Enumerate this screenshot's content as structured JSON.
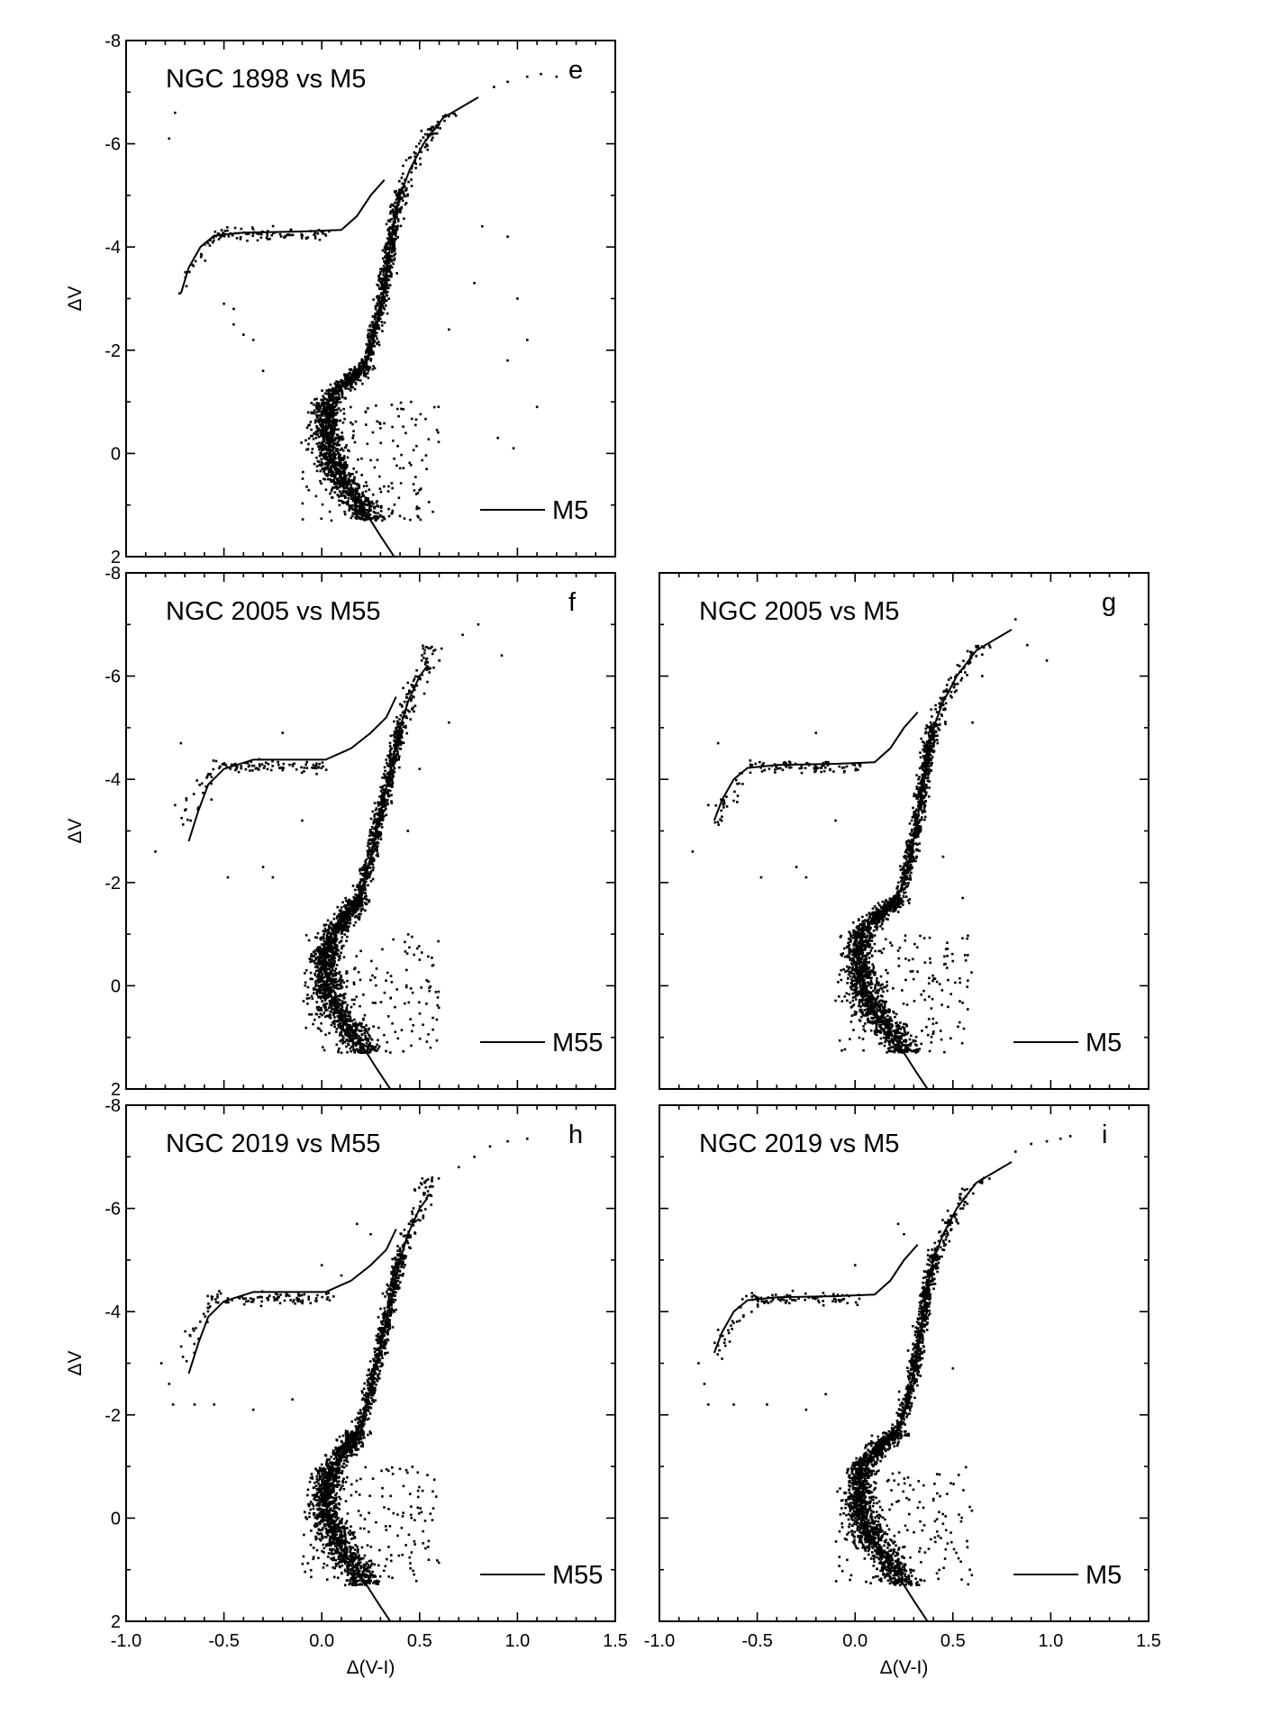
{
  "chart_data": [
    {
      "type": "scatter",
      "panel": "e",
      "title": "NGC 1898 vs M5",
      "legend": "M5",
      "xlabel": "",
      "ylabel": "ΔV",
      "xlim": [
        -1.0,
        1.5
      ],
      "ylim": [
        2,
        -8
      ],
      "xticks": [],
      "yticks": [
        "-8",
        "-6",
        "-4",
        "-2",
        "0",
        "2"
      ],
      "ridge_line": {
        "rgb_ms": [
          [
            0.37,
            2.0
          ],
          [
            0.3,
            1.6
          ],
          [
            0.2,
            1.0
          ],
          [
            0.1,
            0.5
          ],
          [
            0.04,
            0.0
          ],
          [
            0.02,
            -0.5
          ],
          [
            0.03,
            -1.0
          ],
          [
            0.1,
            -1.3
          ],
          [
            0.2,
            -1.6
          ],
          [
            0.25,
            -2.0
          ],
          [
            0.28,
            -2.5
          ],
          [
            0.31,
            -3.0
          ],
          [
            0.33,
            -3.5
          ],
          [
            0.35,
            -4.0
          ],
          [
            0.37,
            -4.5
          ],
          [
            0.4,
            -5.0
          ],
          [
            0.45,
            -5.5
          ],
          [
            0.52,
            -6.0
          ],
          [
            0.62,
            -6.5
          ],
          [
            0.8,
            -6.9
          ]
        ],
        "hb": [
          [
            -0.72,
            -3.1
          ],
          [
            -0.68,
            -3.6
          ],
          [
            -0.62,
            -4.0
          ],
          [
            -0.55,
            -4.22
          ],
          [
            -0.4,
            -4.28
          ],
          [
            -0.1,
            -4.3
          ],
          [
            0.1,
            -4.33
          ],
          [
            0.18,
            -4.6
          ],
          [
            0.25,
            -5.0
          ],
          [
            0.32,
            -5.3
          ]
        ]
      },
      "sparse_points": [
        [
          -0.78,
          -6.1
        ],
        [
          -0.75,
          -6.6
        ],
        [
          0.88,
          -7.1
        ],
        [
          0.95,
          -7.2
        ],
        [
          1.05,
          -7.3
        ],
        [
          1.12,
          -7.35
        ],
        [
          1.2,
          -7.3
        ],
        [
          0.95,
          -1.8
        ],
        [
          1.05,
          -2.2
        ],
        [
          1.1,
          -0.9
        ],
        [
          0.9,
          -0.3
        ],
        [
          0.98,
          -0.1
        ],
        [
          0.82,
          -4.4
        ],
        [
          0.95,
          -4.2
        ],
        [
          1.0,
          -3.0
        ],
        [
          0.78,
          -3.3
        ],
        [
          0.65,
          -2.4
        ],
        [
          -0.45,
          -2.8
        ],
        [
          -0.4,
          -2.3
        ],
        [
          -0.35,
          -2.2
        ],
        [
          -0.5,
          -2.9
        ],
        [
          -0.45,
          -2.5
        ],
        [
          -0.3,
          -1.6
        ]
      ]
    },
    {
      "type": "scatter",
      "panel": "f",
      "title": "NGC 2005 vs M55",
      "legend": "M55",
      "xlabel": "",
      "ylabel": "ΔV",
      "xlim": [
        -1.0,
        1.5
      ],
      "ylim": [
        2,
        -8
      ],
      "xticks": [],
      "yticks": [
        "-8",
        "-6",
        "-4",
        "-2",
        "0",
        "2"
      ],
      "ridge_line": {
        "rgb_ms": [
          [
            0.35,
            2.0
          ],
          [
            0.28,
            1.6
          ],
          [
            0.18,
            1.0
          ],
          [
            0.08,
            0.5
          ],
          [
            0.03,
            0.0
          ],
          [
            0.02,
            -0.5
          ],
          [
            0.05,
            -1.0
          ],
          [
            0.12,
            -1.3
          ],
          [
            0.2,
            -1.8
          ],
          [
            0.25,
            -2.5
          ],
          [
            0.28,
            -3.0
          ],
          [
            0.31,
            -3.5
          ],
          [
            0.34,
            -4.0
          ],
          [
            0.37,
            -4.5
          ],
          [
            0.4,
            -5.0
          ],
          [
            0.44,
            -5.5
          ],
          [
            0.5,
            -6.0
          ],
          [
            0.54,
            -6.2
          ]
        ],
        "hb": [
          [
            -0.68,
            -2.8
          ],
          [
            -0.63,
            -3.4
          ],
          [
            -0.58,
            -3.9
          ],
          [
            -0.5,
            -4.2
          ],
          [
            -0.35,
            -4.38
          ],
          [
            0.02,
            -4.38
          ],
          [
            0.15,
            -4.6
          ],
          [
            0.25,
            -4.9
          ],
          [
            0.33,
            -5.2
          ],
          [
            0.38,
            -5.6
          ]
        ]
      },
      "sparse_points": [
        [
          0.72,
          -6.8
        ],
        [
          0.8,
          -7.0
        ],
        [
          0.92,
          -6.4
        ],
        [
          0.6,
          -6.3
        ],
        [
          0.65,
          -5.1
        ],
        [
          -0.85,
          -2.6
        ],
        [
          -0.72,
          -4.7
        ],
        [
          -0.75,
          -3.5
        ],
        [
          -0.48,
          -2.1
        ],
        [
          -0.3,
          -2.3
        ],
        [
          -0.25,
          -2.1
        ],
        [
          -0.2,
          -4.9
        ],
        [
          -0.1,
          -3.2
        ],
        [
          0.5,
          -4.2
        ],
        [
          0.44,
          -3.0
        ]
      ]
    },
    {
      "type": "scatter",
      "panel": "g",
      "title": "NGC 2005 vs M5",
      "legend": "M5",
      "xlabel": "",
      "ylabel": "",
      "xlim": [
        -1.0,
        1.5
      ],
      "ylim": [
        2,
        -8
      ],
      "xticks": [],
      "yticks": [],
      "ridge_line": {
        "rgb_ms": [
          [
            0.37,
            2.0
          ],
          [
            0.3,
            1.6
          ],
          [
            0.2,
            1.0
          ],
          [
            0.1,
            0.5
          ],
          [
            0.04,
            0.0
          ],
          [
            0.02,
            -0.5
          ],
          [
            0.03,
            -1.0
          ],
          [
            0.1,
            -1.3
          ],
          [
            0.2,
            -1.6
          ],
          [
            0.25,
            -2.0
          ],
          [
            0.28,
            -2.5
          ],
          [
            0.31,
            -3.0
          ],
          [
            0.33,
            -3.5
          ],
          [
            0.35,
            -4.0
          ],
          [
            0.37,
            -4.5
          ],
          [
            0.4,
            -5.0
          ],
          [
            0.45,
            -5.5
          ],
          [
            0.52,
            -6.0
          ],
          [
            0.62,
            -6.5
          ],
          [
            0.8,
            -6.9
          ]
        ],
        "hb": [
          [
            -0.72,
            -3.2
          ],
          [
            -0.68,
            -3.6
          ],
          [
            -0.62,
            -4.0
          ],
          [
            -0.55,
            -4.22
          ],
          [
            -0.4,
            -4.28
          ],
          [
            -0.1,
            -4.3
          ],
          [
            0.1,
            -4.33
          ],
          [
            0.18,
            -4.6
          ],
          [
            0.25,
            -5.0
          ],
          [
            0.32,
            -5.3
          ]
        ]
      },
      "sparse_points": [
        [
          0.82,
          -7.1
        ],
        [
          0.88,
          -6.6
        ],
        [
          0.98,
          -6.3
        ],
        [
          0.65,
          -6.0
        ],
        [
          0.6,
          -5.1
        ],
        [
          -0.83,
          -2.6
        ],
        [
          -0.7,
          -4.7
        ],
        [
          -0.75,
          -3.5
        ],
        [
          -0.48,
          -2.1
        ],
        [
          -0.3,
          -2.3
        ],
        [
          -0.25,
          -2.1
        ],
        [
          -0.2,
          -4.9
        ],
        [
          -0.1,
          -3.2
        ],
        [
          0.45,
          -2.5
        ],
        [
          0.55,
          -1.7
        ]
      ]
    },
    {
      "type": "scatter",
      "panel": "h",
      "title": "NGC 2019 vs M55",
      "legend": "M55",
      "xlabel": "Δ(V-I)",
      "ylabel": "ΔV",
      "xlim": [
        -1.0,
        1.5
      ],
      "ylim": [
        2,
        -8
      ],
      "xticks": [
        "-1.0",
        "-0.5",
        "0.0",
        "0.5",
        "1.0",
        "1.5"
      ],
      "yticks": [
        "-8",
        "-6",
        "-4",
        "-2",
        "0",
        "2"
      ],
      "ridge_line": {
        "rgb_ms": [
          [
            0.35,
            2.0
          ],
          [
            0.28,
            1.6
          ],
          [
            0.18,
            1.0
          ],
          [
            0.08,
            0.5
          ],
          [
            0.03,
            0.0
          ],
          [
            0.02,
            -0.5
          ],
          [
            0.05,
            -1.0
          ],
          [
            0.12,
            -1.3
          ],
          [
            0.2,
            -1.8
          ],
          [
            0.25,
            -2.5
          ],
          [
            0.28,
            -3.0
          ],
          [
            0.31,
            -3.5
          ],
          [
            0.34,
            -4.0
          ],
          [
            0.37,
            -4.5
          ],
          [
            0.4,
            -5.0
          ],
          [
            0.44,
            -5.5
          ],
          [
            0.5,
            -6.0
          ],
          [
            0.54,
            -6.2
          ]
        ],
        "hb": [
          [
            -0.68,
            -2.8
          ],
          [
            -0.63,
            -3.4
          ],
          [
            -0.58,
            -3.9
          ],
          [
            -0.5,
            -4.2
          ],
          [
            -0.35,
            -4.38
          ],
          [
            0.02,
            -4.38
          ],
          [
            0.15,
            -4.6
          ],
          [
            0.25,
            -4.9
          ],
          [
            0.33,
            -5.2
          ],
          [
            0.38,
            -5.6
          ]
        ]
      },
      "sparse_points": [
        [
          0.7,
          -6.8
        ],
        [
          0.78,
          -7.0
        ],
        [
          0.86,
          -7.2
        ],
        [
          0.95,
          -7.3
        ],
        [
          1.05,
          -7.35
        ],
        [
          -0.82,
          -3.0
        ],
        [
          -0.78,
          -2.6
        ],
        [
          -0.76,
          -2.2
        ],
        [
          -0.65,
          -2.2
        ],
        [
          -0.55,
          -2.2
        ],
        [
          -0.35,
          -2.1
        ],
        [
          -0.15,
          -2.3
        ],
        [
          0.0,
          -4.9
        ],
        [
          0.1,
          -4.7
        ],
        [
          0.25,
          -5.5
        ],
        [
          0.18,
          -5.7
        ]
      ]
    },
    {
      "type": "scatter",
      "panel": "i",
      "title": "NGC 2019 vs M5",
      "legend": "M5",
      "xlabel": "Δ(V-I)",
      "ylabel": "",
      "xlim": [
        -1.0,
        1.5
      ],
      "ylim": [
        2,
        -8
      ],
      "xticks": [
        "-1.0",
        "-0.5",
        "0.0",
        "0.5",
        "1.0",
        "1.5"
      ],
      "yticks": [],
      "ridge_line": {
        "rgb_ms": [
          [
            0.37,
            2.0
          ],
          [
            0.3,
            1.6
          ],
          [
            0.2,
            1.0
          ],
          [
            0.1,
            0.5
          ],
          [
            0.04,
            0.0
          ],
          [
            0.02,
            -0.5
          ],
          [
            0.03,
            -1.0
          ],
          [
            0.1,
            -1.3
          ],
          [
            0.2,
            -1.6
          ],
          [
            0.25,
            -2.0
          ],
          [
            0.28,
            -2.5
          ],
          [
            0.31,
            -3.0
          ],
          [
            0.33,
            -3.5
          ],
          [
            0.35,
            -4.0
          ],
          [
            0.37,
            -4.5
          ],
          [
            0.4,
            -5.0
          ],
          [
            0.45,
            -5.5
          ],
          [
            0.52,
            -6.0
          ],
          [
            0.62,
            -6.5
          ],
          [
            0.8,
            -6.9
          ]
        ],
        "hb": [
          [
            -0.72,
            -3.2
          ],
          [
            -0.68,
            -3.6
          ],
          [
            -0.62,
            -4.0
          ],
          [
            -0.55,
            -4.22
          ],
          [
            -0.4,
            -4.28
          ],
          [
            -0.1,
            -4.3
          ],
          [
            0.1,
            -4.33
          ],
          [
            0.18,
            -4.6
          ],
          [
            0.25,
            -5.0
          ],
          [
            0.32,
            -5.3
          ]
        ]
      },
      "sparse_points": [
        [
          0.82,
          -7.1
        ],
        [
          0.9,
          -7.25
        ],
        [
          0.98,
          -7.3
        ],
        [
          1.05,
          -7.35
        ],
        [
          1.1,
          -7.4
        ],
        [
          -0.8,
          -3.0
        ],
        [
          -0.77,
          -2.6
        ],
        [
          -0.75,
          -2.2
        ],
        [
          -0.62,
          -2.2
        ],
        [
          -0.45,
          -2.2
        ],
        [
          -0.25,
          -2.1
        ],
        [
          -0.15,
          -2.4
        ],
        [
          0.0,
          -4.9
        ],
        [
          0.25,
          -5.5
        ],
        [
          0.22,
          -5.7
        ],
        [
          0.5,
          -2.9
        ]
      ]
    }
  ]
}
